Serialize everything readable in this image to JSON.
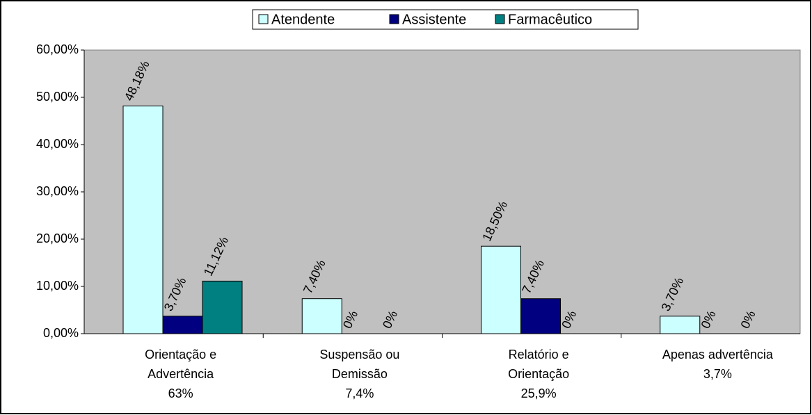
{
  "chart_data": {
    "type": "bar",
    "categories": [
      [
        "Orientação e",
        "Advertência",
        "63%"
      ],
      [
        "Suspensão ou",
        "Demissão",
        "7,4%"
      ],
      [
        "Relatório e",
        "Orientação",
        "25,9%"
      ],
      [
        "Apenas advertência",
        "3,7%"
      ]
    ],
    "series": [
      {
        "name": "Atendente",
        "color": "#ccffff",
        "values": [
          48.18,
          7.4,
          18.5,
          3.7
        ],
        "value_labels": [
          "48,18%",
          "7,40%",
          "18,50%",
          "3,70%"
        ]
      },
      {
        "name": "Assistente",
        "color": "#000080",
        "values": [
          3.7,
          0,
          7.4,
          0
        ],
        "value_labels": [
          "3,70%",
          "0%",
          "7,40%",
          "0%"
        ]
      },
      {
        "name": "Farmacêutico",
        "color": "#008080",
        "values": [
          11.12,
          0,
          0,
          0
        ],
        "value_labels": [
          "11,12%",
          "0%",
          "0%",
          "0%"
        ]
      }
    ],
    "ylim": [
      0,
      60
    ],
    "yticks": [
      {
        "value": 0,
        "label": "0,00%"
      },
      {
        "value": 10,
        "label": "10,00%"
      },
      {
        "value": 20,
        "label": "20,00%"
      },
      {
        "value": 30,
        "label": "30,00%"
      },
      {
        "value": 40,
        "label": "40,00%"
      },
      {
        "value": 50,
        "label": "50,00%"
      },
      {
        "value": 60,
        "label": "60,00%"
      }
    ],
    "grid": false,
    "legend": "top",
    "plot_background": "#c0c0c0"
  }
}
